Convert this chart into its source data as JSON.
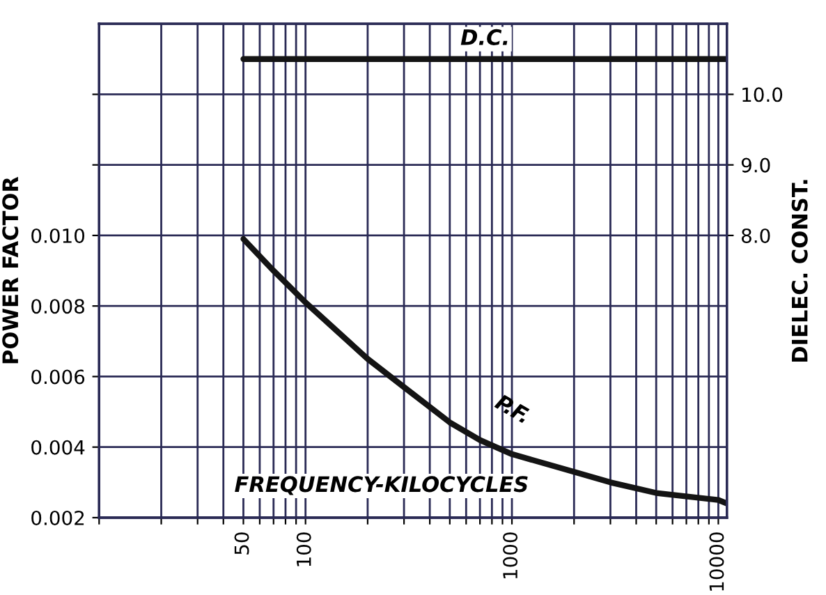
{
  "chart_data": {
    "type": "line",
    "xlabel": "FREQUENCY-KILOCYCLES",
    "ylabel": "POWER FACTOR",
    "y2label": "DIELEC. CONST.",
    "log": "x",
    "grid": true,
    "legend": false,
    "marker": "none",
    "line_style": "solid",
    "xlim": [
      10,
      11000
    ],
    "xticks": [
      {
        "value": 10,
        "label": null
      },
      {
        "value": 20,
        "label": null
      },
      {
        "value": 30,
        "label": null
      },
      {
        "value": 40,
        "label": null
      },
      50,
      {
        "value": 60,
        "label": null
      },
      {
        "value": 70,
        "label": null
      },
      {
        "value": 80,
        "label": null
      },
      {
        "value": 90,
        "label": null
      },
      100,
      {
        "value": 200,
        "label": null
      },
      {
        "value": 300,
        "label": null
      },
      {
        "value": 400,
        "label": null
      },
      {
        "value": 500,
        "label": null
      },
      {
        "value": 600,
        "label": null
      },
      {
        "value": 700,
        "label": null
      },
      {
        "value": 800,
        "label": null
      },
      {
        "value": 900,
        "label": null
      },
      1000,
      {
        "value": 2000,
        "label": null
      },
      {
        "value": 3000,
        "label": null
      },
      {
        "value": 4000,
        "label": null
      },
      {
        "value": 5000,
        "label": null
      },
      {
        "value": 6000,
        "label": null
      },
      {
        "value": 7000,
        "label": null
      },
      {
        "value": 8000,
        "label": null
      },
      {
        "value": 9000,
        "label": null
      },
      10000
    ],
    "ylim": [
      0.002,
      0.016
    ],
    "yticks": [
      {
        "value": 0.002,
        "label": "0.002"
      },
      {
        "value": 0.004,
        "label": "0.004"
      },
      {
        "value": 0.006,
        "label": "0.006"
      },
      {
        "value": 0.008,
        "label": "0.008"
      },
      {
        "value": 0.01,
        "label": "0.010"
      },
      {
        "value": 0.012,
        "label": null
      },
      {
        "value": 0.014,
        "label": null
      }
    ],
    "y2lim": [
      4.0,
      11.0
    ],
    "y2ticks": [
      {
        "value": 8,
        "label": "8.0"
      },
      {
        "value": 9,
        "label": "9.0"
      },
      {
        "value": 10,
        "label": "10.0"
      }
    ],
    "series": [
      {
        "name": "D.C.",
        "color": "#141414",
        "axis": "y2",
        "x": [
          50,
          11000
        ],
        "values": [
          10.5,
          10.5
        ]
      },
      {
        "name": "P.F.",
        "color": "#141414",
        "x": [
          50,
          70,
          100,
          200,
          300,
          500,
          700,
          1000,
          2000,
          3000,
          5000,
          10000,
          11000
        ],
        "values": [
          0.0099,
          0.009,
          0.0081,
          0.0065,
          0.0057,
          0.0047,
          0.0042,
          0.0038,
          0.0033,
          0.003,
          0.0027,
          0.0025,
          0.0024
        ]
      }
    ]
  }
}
